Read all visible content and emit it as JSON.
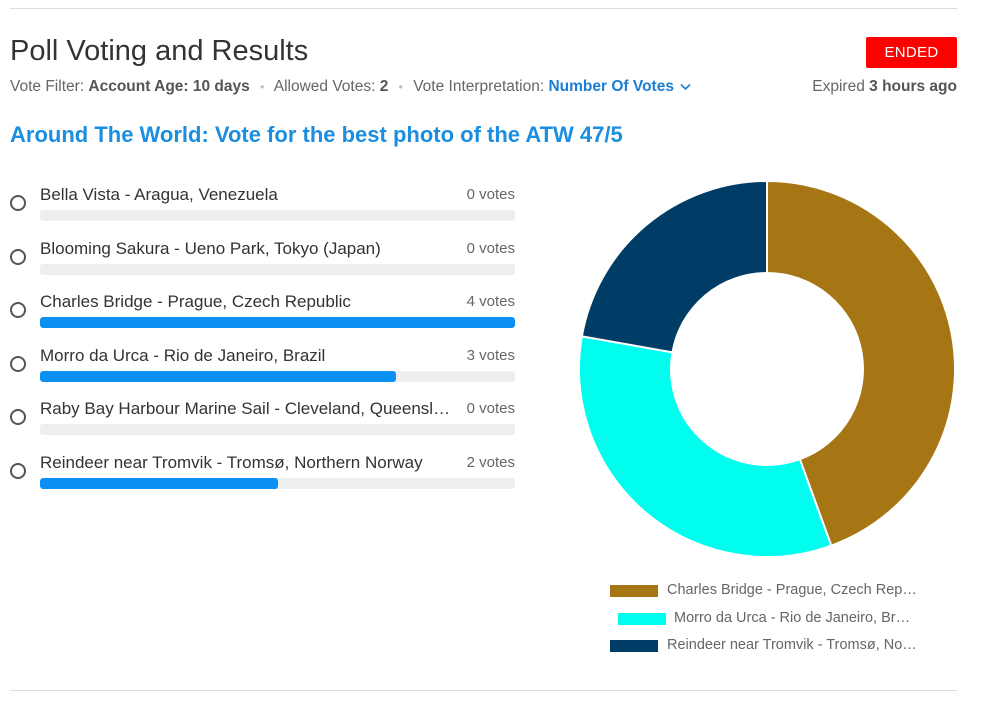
{
  "header": {
    "title": "Poll Voting and Results",
    "status": "ENDED",
    "filter_label": "Vote Filter:",
    "filter_value": "Account Age: 10 days",
    "allowed_label": "Allowed Votes:",
    "allowed_value": "2",
    "interp_label": "Vote Interpretation:",
    "interp_value": "Number Of Votes",
    "expired_prefix": "Expired",
    "expired_value": "3 hours ago"
  },
  "poll": {
    "title": "Around The World: Vote for the best photo of the ATW 47/5",
    "options": [
      {
        "label": "Bella Vista - Aragua, Venezuela",
        "votes_text": "0 votes",
        "votes": 0
      },
      {
        "label": "Blooming Sakura - Ueno Park, Tokyo (Japan)",
        "votes_text": "0 votes",
        "votes": 0
      },
      {
        "label": "Charles Bridge - Prague, Czech Republic",
        "votes_text": "4 votes",
        "votes": 4
      },
      {
        "label": "Morro da Urca - Rio de Janeiro, Brazil",
        "votes_text": "3 votes",
        "votes": 3
      },
      {
        "label": "Raby Bay Harbour Marine Sail - Cleveland, Queensland, Australia",
        "votes_text": "0 votes",
        "votes": 0
      },
      {
        "label": "Reindeer near Tromvik - Tromsø, Northern Norway",
        "votes_text": "2 votes",
        "votes": 2
      }
    ]
  },
  "chart_data": {
    "type": "pie",
    "donut": true,
    "categories": [
      "Charles Bridge - Prague, Czech Republic",
      "Morro da Urca - Rio de Janeiro, Brazil",
      "Reindeer near Tromvik - Tromsø, Northern Norway"
    ],
    "values": [
      4,
      3,
      2
    ],
    "colors": [
      "#a67514",
      "#00fdee",
      "#003d66"
    ],
    "legend": {
      "placement": "bottom",
      "entries": [
        "Charles Bridge - Prague, Czech Rep…",
        "Morro da Urca - Rio de Janeiro, Br…",
        "Reindeer near Tromvik - Tromsø, No…"
      ]
    }
  },
  "colors": {
    "accent": "#1a8ee0",
    "bar": "#0a8ff2",
    "status": "#ff0000"
  }
}
